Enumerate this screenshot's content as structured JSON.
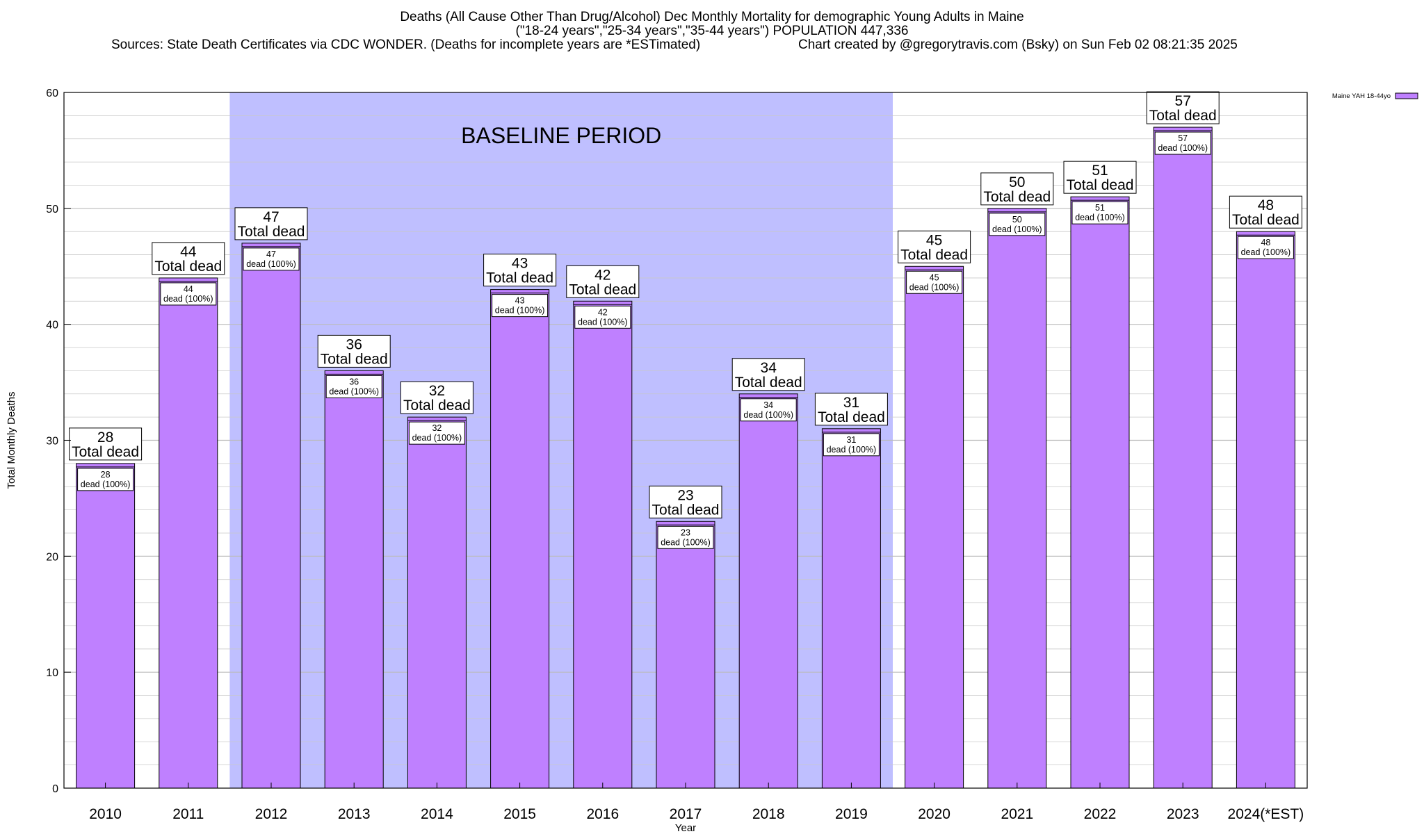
{
  "header": {
    "title_line1": "Deaths (All Cause Other Than Drug/Alcohol) Dec Monthly Mortality for demographic Young Adults in Maine",
    "title_line2": "(\"18-24 years\",\"25-34 years\",\"35-44 years\") POPULATION 447,336",
    "sources": "Sources: State Death Certificates via CDC WONDER. (Deaths for incomplete years are *ESTimated)",
    "credit": "Chart created by @gregorytravis.com (Bsky) on Sun Feb 02 08:21:35 2025"
  },
  "chart_data": {
    "type": "bar",
    "xlabel": "Year",
    "ylabel": "Total Monthly Deaths",
    "ylim": [
      0,
      60
    ],
    "yticks": [
      0,
      10,
      20,
      30,
      40,
      50,
      60
    ],
    "grid": true,
    "legend": {
      "placement": "top-right",
      "label": "Maine YAH 18-44yo"
    },
    "categories": [
      "2010",
      "2011",
      "2012",
      "2013",
      "2014",
      "2015",
      "2016",
      "2017",
      "2018",
      "2019",
      "2020",
      "2021",
      "2022",
      "2023",
      "2024(*EST)"
    ],
    "series": [
      {
        "name": "Maine YAH 18-44yo",
        "values": [
          28,
          44,
          47,
          36,
          32,
          43,
          42,
          23,
          34,
          31,
          45,
          50,
          51,
          57,
          48
        ]
      }
    ],
    "total_label": "Total dead",
    "inner_label": "dead (100%)",
    "annotation": {
      "text": "BASELINE PERIOD",
      "start_category": "2012",
      "end_category": "2019"
    },
    "colors": {
      "bar": "#bf80ff",
      "baseline_band": "#bfbfff",
      "grid": "#c8c8c8"
    }
  }
}
